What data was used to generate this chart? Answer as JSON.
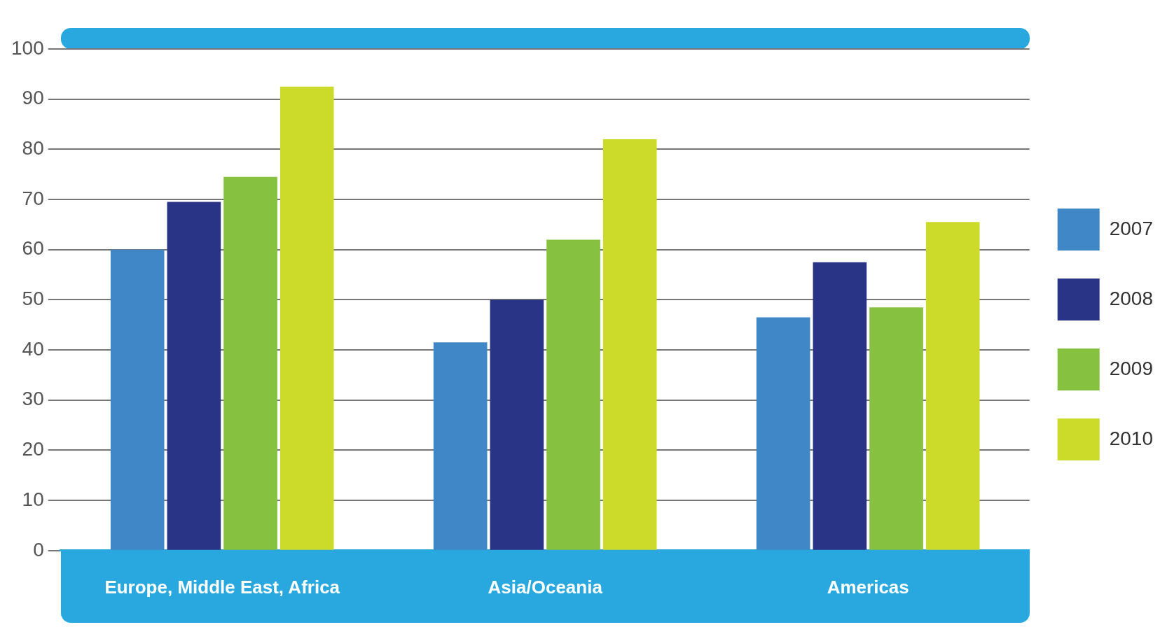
{
  "chart_data": {
    "type": "bar",
    "categories": [
      "Europe, Middle East, Africa",
      "Asia/Oceania",
      "Americas"
    ],
    "series": [
      {
        "name": "2007",
        "color": "#3f87c6",
        "values": [
          60,
          41.5,
          46.5
        ]
      },
      {
        "name": "2008",
        "color": "#2a3486",
        "values": [
          69.5,
          50,
          57.5
        ]
      },
      {
        "name": "2009",
        "color": "#86c23f",
        "values": [
          74.5,
          62,
          48.5
        ]
      },
      {
        "name": "2010",
        "color": "#ccdb2a",
        "values": [
          92.5,
          82,
          65.5
        ]
      }
    ],
    "ylim": [
      0,
      100
    ],
    "yticks": [
      0,
      10,
      20,
      30,
      40,
      50,
      60,
      70,
      80,
      90,
      100
    ],
    "grid": "y",
    "legend": "right"
  }
}
